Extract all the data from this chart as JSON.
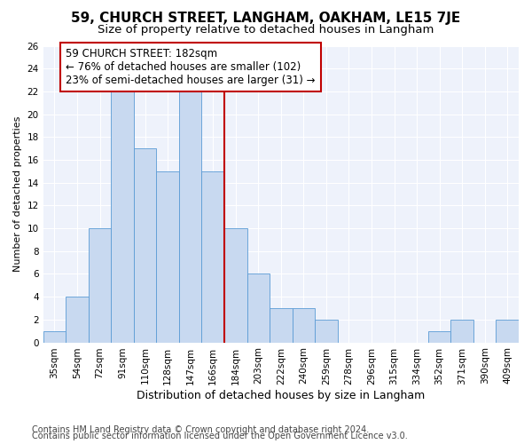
{
  "title1": "59, CHURCH STREET, LANGHAM, OAKHAM, LE15 7JE",
  "title2": "Size of property relative to detached houses in Langham",
  "xlabel": "Distribution of detached houses by size in Langham",
  "ylabel": "Number of detached properties",
  "categories": [
    "35sqm",
    "54sqm",
    "72sqm",
    "91sqm",
    "110sqm",
    "128sqm",
    "147sqm",
    "166sqm",
    "184sqm",
    "203sqm",
    "222sqm",
    "240sqm",
    "259sqm",
    "278sqm",
    "296sqm",
    "315sqm",
    "334sqm",
    "352sqm",
    "371sqm",
    "390sqm",
    "409sqm"
  ],
  "values": [
    1,
    4,
    10,
    22,
    17,
    15,
    22,
    15,
    10,
    6,
    3,
    3,
    2,
    0,
    0,
    0,
    0,
    1,
    2,
    0,
    2
  ],
  "bar_color": "#c8d9f0",
  "bar_edge_color": "#5b9bd5",
  "vline_color": "#c00000",
  "annotation_line1": "59 CHURCH STREET: 182sqm",
  "annotation_line2": "← 76% of detached houses are smaller (102)",
  "annotation_line3": "23% of semi-detached houses are larger (31) →",
  "annotation_box_color": "#ffffff",
  "annotation_box_edge": "#c00000",
  "ylim": [
    0,
    26
  ],
  "yticks": [
    0,
    2,
    4,
    6,
    8,
    10,
    12,
    14,
    16,
    18,
    20,
    22,
    24,
    26
  ],
  "footer1": "Contains HM Land Registry data © Crown copyright and database right 2024.",
  "footer2": "Contains public sector information licensed under the Open Government Licence v3.0.",
  "bg_color": "#eef2fb",
  "grid_color": "#d0d8ec",
  "title1_fontsize": 11,
  "title2_fontsize": 9.5,
  "xlabel_fontsize": 9,
  "ylabel_fontsize": 8,
  "tick_fontsize": 7.5,
  "annotation_fontsize": 8.5,
  "footer_fontsize": 7
}
